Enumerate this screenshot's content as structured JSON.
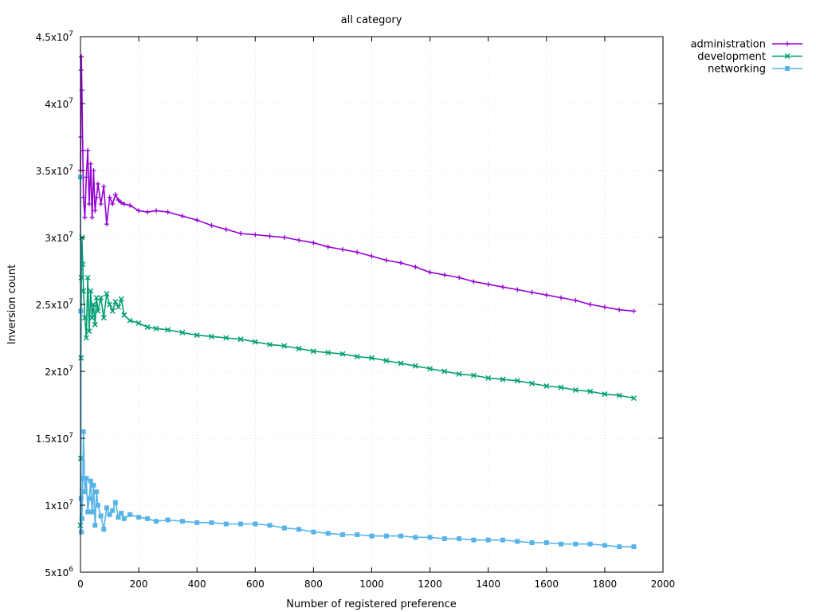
{
  "chart_data": {
    "type": "line",
    "title": "all category",
    "xlabel": "Number of registered preference",
    "ylabel": "Inversion count",
    "xlim": [
      0,
      2000
    ],
    "ylim": [
      5000000,
      45000000
    ],
    "x_ticks": [
      0,
      200,
      400,
      600,
      800,
      1000,
      1200,
      1400,
      1600,
      1800,
      2000
    ],
    "x_tick_labels": [
      "0",
      "200",
      "400",
      "600",
      "800",
      "1000",
      "1200",
      "1400",
      "1600",
      "1800",
      "2000"
    ],
    "y_ticks": [
      5000000,
      10000000,
      15000000,
      20000000,
      25000000,
      30000000,
      35000000,
      40000000,
      45000000
    ],
    "y_tick_labels": [
      {
        "mantissa": "5x10",
        "exp": "6"
      },
      {
        "mantissa": "1x10",
        "exp": "7"
      },
      {
        "mantissa": "1.5x10",
        "exp": "7"
      },
      {
        "mantissa": "2x10",
        "exp": "7"
      },
      {
        "mantissa": "2.5x10",
        "exp": "7"
      },
      {
        "mantissa": "3x10",
        "exp": "7"
      },
      {
        "mantissa": "3.5x10",
        "exp": "7"
      },
      {
        "mantissa": "4x10",
        "exp": "7"
      },
      {
        "mantissa": "4.5x10",
        "exp": "7"
      }
    ],
    "grid": true,
    "legend_position": "outside-top-right",
    "series": [
      {
        "name": "administration",
        "color": "#9400d3",
        "marker": "plus",
        "x": [
          0,
          1,
          2,
          3,
          5,
          8,
          10,
          15,
          20,
          25,
          30,
          35,
          40,
          45,
          50,
          55,
          60,
          70,
          80,
          90,
          100,
          110,
          120,
          130,
          140,
          150,
          170,
          200,
          230,
          260,
          300,
          350,
          400,
          450,
          500,
          550,
          600,
          650,
          700,
          750,
          800,
          850,
          900,
          950,
          1000,
          1050,
          1100,
          1150,
          1200,
          1250,
          1300,
          1350,
          1400,
          1450,
          1500,
          1550,
          1600,
          1650,
          1700,
          1750,
          1800,
          1850,
          1900
        ],
        "y": [
          35000000,
          37500000,
          42500000,
          43500000,
          41000000,
          36500000,
          33000000,
          31500000,
          34500000,
          36500000,
          32500000,
          35500000,
          31500000,
          35000000,
          32000000,
          33000000,
          34000000,
          32500000,
          33800000,
          31000000,
          33000000,
          32500000,
          33200000,
          32800000,
          32600000,
          32500000,
          32400000,
          32000000,
          31900000,
          32000000,
          31900000,
          31600000,
          31300000,
          30900000,
          30600000,
          30300000,
          30200000,
          30100000,
          30000000,
          29800000,
          29600000,
          29300000,
          29100000,
          28900000,
          28600000,
          28300000,
          28100000,
          27800000,
          27400000,
          27200000,
          27000000,
          26700000,
          26500000,
          26300000,
          26100000,
          25900000,
          25700000,
          25500000,
          25300000,
          25000000,
          24800000,
          24600000,
          24500000
        ]
      },
      {
        "name": "development",
        "color": "#009e73",
        "marker": "cross",
        "x": [
          0,
          1,
          2,
          3,
          5,
          8,
          10,
          15,
          20,
          25,
          30,
          35,
          40,
          45,
          50,
          55,
          60,
          70,
          80,
          90,
          100,
          110,
          120,
          130,
          140,
          150,
          170,
          200,
          230,
          260,
          300,
          350,
          400,
          450,
          500,
          550,
          600,
          650,
          700,
          750,
          800,
          850,
          900,
          950,
          1000,
          1050,
          1100,
          1150,
          1200,
          1250,
          1300,
          1350,
          1400,
          1450,
          1500,
          1550,
          1600,
          1650,
          1700,
          1750,
          1800,
          1850,
          1900
        ],
        "y": [
          8500000,
          13500000,
          21000000,
          27000000,
          30000000,
          28000000,
          26000000,
          24000000,
          22500000,
          27000000,
          23000000,
          26000000,
          24000000,
          25000000,
          23500000,
          25500000,
          24500000,
          25500000,
          24000000,
          25800000,
          25000000,
          24500000,
          25200000,
          24800000,
          25400000,
          24200000,
          23800000,
          23600000,
          23300000,
          23200000,
          23100000,
          22900000,
          22700000,
          22600000,
          22500000,
          22400000,
          22200000,
          22000000,
          21900000,
          21700000,
          21500000,
          21400000,
          21300000,
          21100000,
          21000000,
          20800000,
          20600000,
          20400000,
          20200000,
          20000000,
          19800000,
          19700000,
          19500000,
          19400000,
          19300000,
          19100000,
          18900000,
          18800000,
          18600000,
          18500000,
          18300000,
          18200000,
          18000000
        ]
      },
      {
        "name": "networking",
        "color": "#56b4e9",
        "marker": "box",
        "x": [
          0,
          1,
          2,
          3,
          5,
          8,
          10,
          15,
          20,
          25,
          30,
          35,
          40,
          45,
          50,
          55,
          60,
          70,
          80,
          90,
          100,
          110,
          120,
          130,
          140,
          150,
          170,
          200,
          230,
          260,
          300,
          350,
          400,
          450,
          500,
          550,
          600,
          650,
          700,
          750,
          800,
          850,
          900,
          950,
          1000,
          1050,
          1100,
          1150,
          1200,
          1250,
          1300,
          1350,
          1400,
          1450,
          1500,
          1550,
          1600,
          1650,
          1700,
          1750,
          1800,
          1850,
          1900
        ],
        "y": [
          34500000,
          24500000,
          10500000,
          8000000,
          9000000,
          12000000,
          15500000,
          11000000,
          12000000,
          9500000,
          10500000,
          11800000,
          9500000,
          11500000,
          8500000,
          11000000,
          10000000,
          9200000,
          8200000,
          9800000,
          9300000,
          9600000,
          10200000,
          9100000,
          9400000,
          9000000,
          9300000,
          9100000,
          9000000,
          8800000,
          8900000,
          8800000,
          8700000,
          8700000,
          8600000,
          8600000,
          8600000,
          8500000,
          8300000,
          8200000,
          8000000,
          7900000,
          7800000,
          7800000,
          7700000,
          7700000,
          7700000,
          7600000,
          7600000,
          7500000,
          7500000,
          7400000,
          7400000,
          7400000,
          7300000,
          7200000,
          7200000,
          7100000,
          7100000,
          7100000,
          7000000,
          6900000,
          6900000
        ]
      }
    ]
  }
}
